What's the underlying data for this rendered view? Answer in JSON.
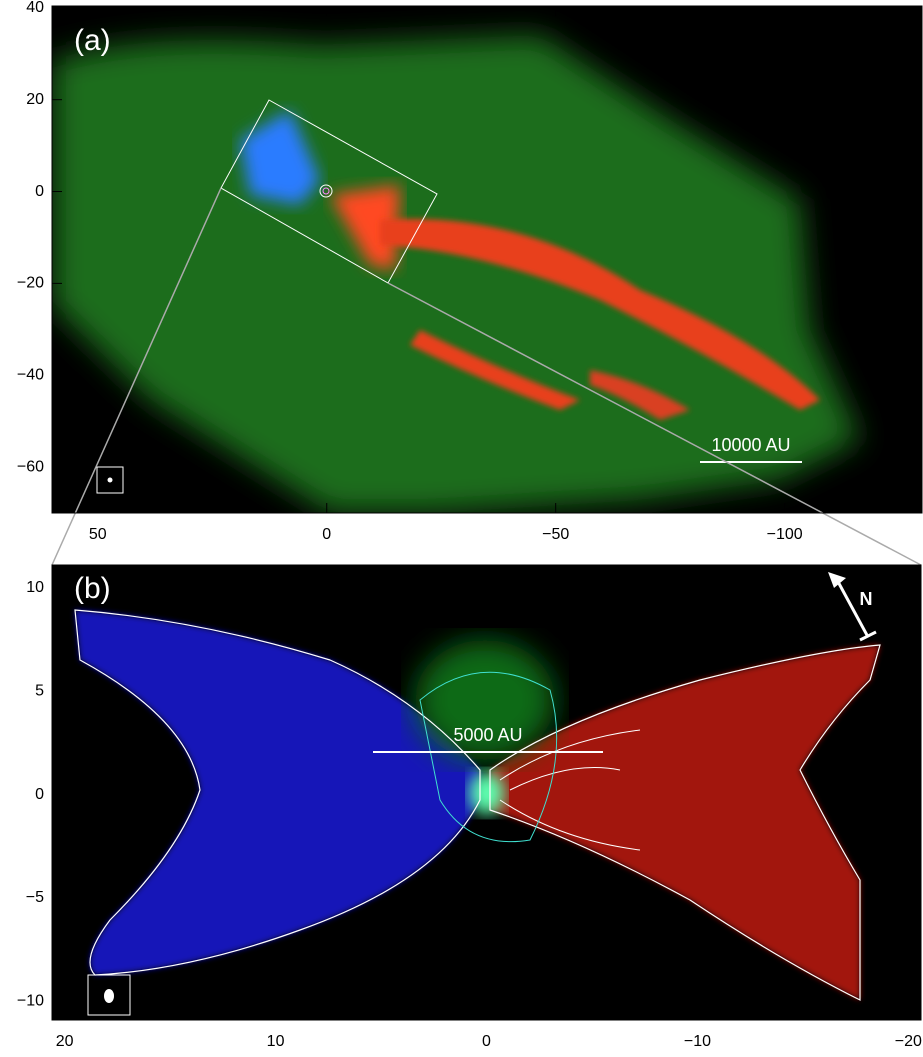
{
  "chart_data": [
    {
      "type": "image",
      "panel_label": "(a)",
      "scale_bar": "10000 AU",
      "xlim": [
        60,
        -130
      ],
      "ylim": [
        -70,
        40.4
      ],
      "xticks": [
        50,
        0,
        {
          "value": -50,
          "label": "−50"
        },
        {
          "value": -100,
          "label": "−100"
        }
      ],
      "yticks": [
        40,
        20,
        0,
        {
          "value": -20,
          "label": "−20"
        },
        {
          "value": -40,
          "label": "−40"
        },
        {
          "value": -60,
          "label": "−60"
        }
      ]
    },
    {
      "type": "image",
      "panel_label": "(b)",
      "scale_bar": "5000 AU",
      "north": "N",
      "xlim": [
        20.6,
        -20.6
      ],
      "ylim": [
        -10.9,
        11.1
      ],
      "xticks": [
        20,
        10,
        0,
        {
          "value": -10,
          "label": "−10"
        },
        {
          "value": -20,
          "label": "−20"
        }
      ],
      "yticks": [
        10,
        5,
        0,
        {
          "value": -5,
          "label": "−5"
        },
        {
          "value": -10,
          "label": "−10"
        }
      ]
    }
  ]
}
